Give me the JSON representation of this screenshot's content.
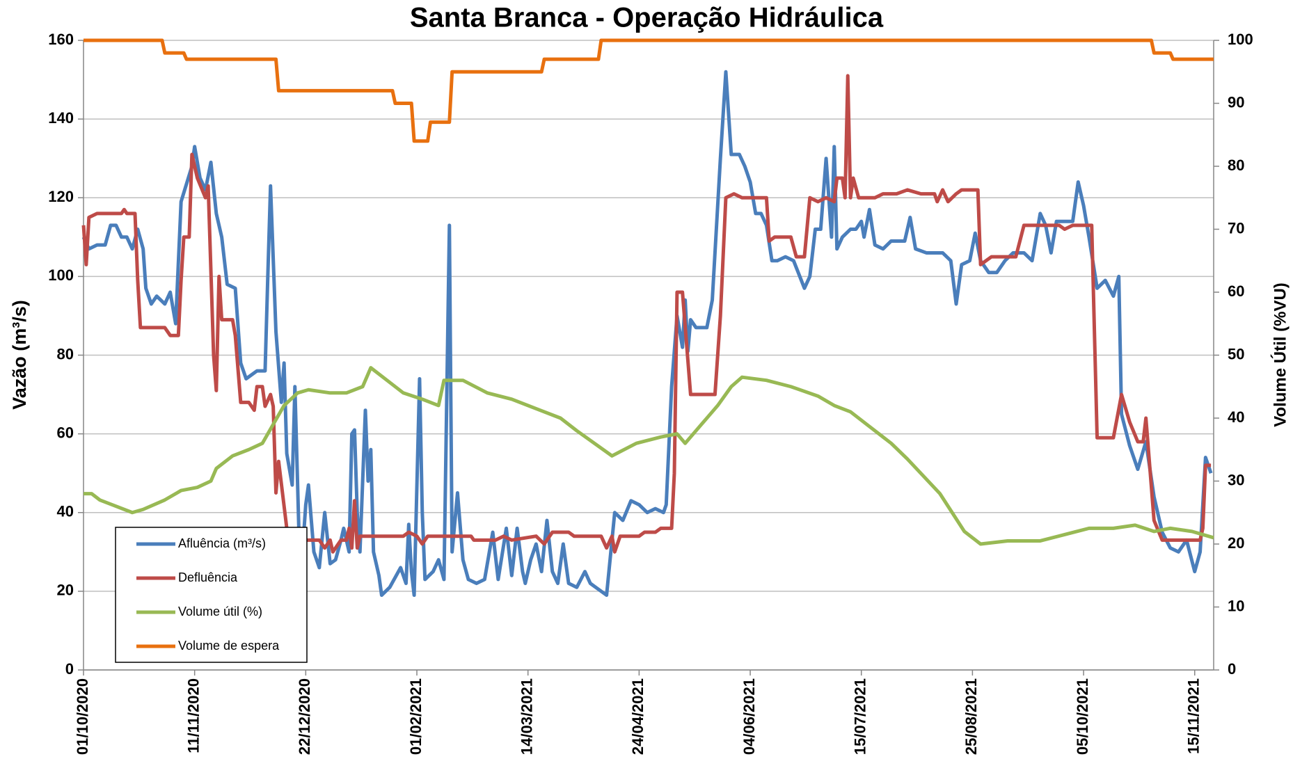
{
  "chart_data": {
    "type": "line",
    "title": "Santa Branca - Operação Hidráulica",
    "y_label": "Vazão (m³/s)",
    "y2_label": "Volume Útil (%VU)",
    "xlim": [
      "2020-10-01",
      "2021-11-22"
    ],
    "xticks": [
      {
        "value": "2020-10-01",
        "label": "01/10/2020"
      },
      {
        "value": "2020-11-11",
        "label": "11/11/2020"
      },
      {
        "value": "2020-12-22",
        "label": "22/12/2020"
      },
      {
        "value": "2021-02-01",
        "label": "01/02/2021"
      },
      {
        "value": "2021-03-14",
        "label": "14/03/2021"
      },
      {
        "value": "2021-04-24",
        "label": "24/04/2021"
      },
      {
        "value": "2021-06-04",
        "label": "04/06/2021"
      },
      {
        "value": "2021-07-15",
        "label": "15/07/2021"
      },
      {
        "value": "2021-08-25",
        "label": "25/08/2021"
      },
      {
        "value": "2021-10-05",
        "label": "05/10/2021"
      },
      {
        "value": "2021-11-15",
        "label": "15/11/2021"
      }
    ],
    "ylim": [
      0,
      160
    ],
    "yticks": [
      0,
      20,
      40,
      60,
      80,
      100,
      120,
      140,
      160
    ],
    "y2lim": [
      0,
      100
    ],
    "y2ticks": [
      0,
      10,
      20,
      30,
      40,
      50,
      60,
      70,
      80,
      90,
      100
    ],
    "grid": true,
    "legend": "lower-left",
    "series": [
      {
        "name": "Afluência (m³/s)",
        "color": "#4a7ebb",
        "x": [
          "2020-10-01",
          "2020-10-03",
          "2020-10-06",
          "2020-10-09",
          "2020-10-11",
          "2020-10-13",
          "2020-10-15",
          "2020-10-17",
          "2020-10-19",
          "2020-10-21",
          "2020-10-23",
          "2020-10-24",
          "2020-10-26",
          "2020-10-28",
          "2020-10-31",
          "2020-11-02",
          "2020-11-04",
          "2020-11-06",
          "2020-11-10",
          "2020-11-11",
          "2020-11-13",
          "2020-11-15",
          "2020-11-17",
          "2020-11-19",
          "2020-11-21",
          "2020-11-23",
          "2020-11-26",
          "2020-11-28",
          "2020-11-30",
          "2020-12-04",
          "2020-12-07",
          "2020-12-08",
          "2020-12-09",
          "2020-12-11",
          "2020-12-13",
          "2020-12-14",
          "2020-12-15",
          "2020-12-17",
          "2020-12-18",
          "2020-12-20",
          "2020-12-22",
          "2020-12-23",
          "2020-12-25",
          "2020-12-27",
          "2020-12-29",
          "2020-12-31",
          "2021-01-02",
          "2021-01-04",
          "2021-01-05",
          "2021-01-07",
          "2021-01-08",
          "2021-01-09",
          "2021-01-10",
          "2021-01-11",
          "2021-01-13",
          "2021-01-14",
          "2021-01-15",
          "2021-01-16",
          "2021-01-18",
          "2021-01-19",
          "2021-01-22",
          "2021-01-26",
          "2021-01-28",
          "2021-01-29",
          "2021-01-30",
          "2021-01-31",
          "2021-02-02",
          "2021-02-03",
          "2021-02-04",
          "2021-02-07",
          "2021-02-09",
          "2021-02-11",
          "2021-02-13",
          "2021-02-14",
          "2021-02-16",
          "2021-02-18",
          "2021-02-20",
          "2021-02-23",
          "2021-02-26",
          "2021-03-01",
          "2021-03-03",
          "2021-03-06",
          "2021-03-08",
          "2021-03-10",
          "2021-03-12",
          "2021-03-13",
          "2021-03-15",
          "2021-03-17",
          "2021-03-19",
          "2021-03-21",
          "2021-03-23",
          "2021-03-25",
          "2021-03-27",
          "2021-03-29",
          "2021-04-01",
          "2021-04-04",
          "2021-04-06",
          "2021-04-08",
          "2021-04-12",
          "2021-04-15",
          "2021-04-18",
          "2021-04-21",
          "2021-04-24",
          "2021-04-27",
          "2021-04-30",
          "2021-05-03",
          "2021-05-04",
          "2021-05-06",
          "2021-05-08",
          "2021-05-10",
          "2021-05-11",
          "2021-05-12",
          "2021-05-13",
          "2021-05-15",
          "2021-05-19",
          "2021-05-21",
          "2021-05-24",
          "2021-05-26",
          "2021-05-28",
          "2021-05-31",
          "2021-06-02",
          "2021-06-04",
          "2021-06-06",
          "2021-06-08",
          "2021-06-10",
          "2021-06-12",
          "2021-06-14",
          "2021-06-17",
          "2021-06-20",
          "2021-06-24",
          "2021-06-26",
          "2021-06-28",
          "2021-06-30",
          "2021-07-02",
          "2021-07-04",
          "2021-07-05",
          "2021-07-06",
          "2021-07-08",
          "2021-07-11",
          "2021-07-13",
          "2021-07-15",
          "2021-07-16",
          "2021-07-18",
          "2021-07-20",
          "2021-07-23",
          "2021-07-26",
          "2021-07-31",
          "2021-08-02",
          "2021-08-04",
          "2021-08-08",
          "2021-08-14",
          "2021-08-17",
          "2021-08-19",
          "2021-08-21",
          "2021-08-24",
          "2021-08-26",
          "2021-08-28",
          "2021-08-31",
          "2021-09-03",
          "2021-09-06",
          "2021-09-09",
          "2021-09-13",
          "2021-09-16",
          "2021-09-19",
          "2021-09-21",
          "2021-09-23",
          "2021-09-25",
          "2021-09-28",
          "2021-10-01",
          "2021-10-03",
          "2021-10-05",
          "2021-10-07",
          "2021-10-10",
          "2021-10-13",
          "2021-10-16",
          "2021-10-18",
          "2021-10-19",
          "2021-10-22",
          "2021-10-25",
          "2021-10-28",
          "2021-10-31",
          "2021-11-03",
          "2021-11-06",
          "2021-11-09",
          "2021-11-12",
          "2021-11-15",
          "2021-11-17",
          "2021-11-19",
          "2021-11-21"
        ],
        "values": [
          110,
          107,
          108,
          108,
          113,
          113,
          110,
          110,
          107,
          112,
          107,
          97,
          93,
          95,
          93,
          96,
          88,
          119,
          128,
          133,
          125,
          122,
          129,
          116,
          110,
          98,
          97,
          78,
          74,
          76,
          76,
          100,
          123,
          86,
          68,
          78,
          55,
          47,
          72,
          22,
          42,
          47,
          30,
          26,
          40,
          27,
          28,
          33,
          36,
          30,
          60,
          61,
          40,
          30,
          66,
          48,
          56,
          30,
          24,
          19,
          21,
          26,
          22,
          37,
          25,
          19,
          74,
          40,
          23,
          25,
          28,
          23,
          113,
          30,
          45,
          28,
          23,
          22,
          23,
          35,
          23,
          36,
          24,
          36,
          25,
          22,
          28,
          32,
          25,
          38,
          25,
          22,
          32,
          22,
          21,
          25,
          22,
          21,
          19,
          40,
          38,
          43,
          42,
          40,
          41,
          40,
          42,
          72,
          90,
          82,
          94,
          81,
          89,
          87,
          87,
          94,
          130,
          152,
          131,
          131,
          128,
          124,
          116,
          116,
          113,
          104,
          104,
          105,
          104,
          97,
          100,
          112,
          112,
          130,
          110,
          133,
          107,
          110,
          112,
          112,
          114,
          110,
          117,
          108,
          107,
          109,
          109,
          115,
          107,
          106,
          106,
          104,
          93,
          103,
          104,
          111,
          104,
          101,
          101,
          104,
          106,
          106,
          104,
          116,
          113,
          106,
          114,
          114,
          114,
          124,
          118,
          110,
          97,
          99,
          95,
          100,
          65,
          57,
          51,
          58,
          44,
          35,
          31,
          30,
          33,
          25,
          30,
          54,
          50
        ]
      },
      {
        "name": "Defluência",
        "color": "#be4b48",
        "x": [
          "2020-10-01",
          "2020-10-02",
          "2020-10-03",
          "2020-10-06",
          "2020-10-15",
          "2020-10-16",
          "2020-10-17",
          "2020-10-20",
          "2020-10-21",
          "2020-10-22",
          "2020-10-31",
          "2020-11-02",
          "2020-11-05",
          "2020-11-06",
          "2020-11-07",
          "2020-11-09",
          "2020-11-10",
          "2020-11-12",
          "2020-11-15",
          "2020-11-16",
          "2020-11-18",
          "2020-11-19",
          "2020-11-20",
          "2020-11-21",
          "2020-11-25",
          "2020-11-26",
          "2020-11-28",
          "2020-12-01",
          "2020-12-03",
          "2020-12-04",
          "2020-12-06",
          "2020-12-07",
          "2020-12-09",
          "2020-12-10",
          "2020-12-11",
          "2020-12-12",
          "2020-12-15",
          "2020-12-17",
          "2020-12-27",
          "2020-12-29",
          "2020-12-31",
          "2021-01-01",
          "2021-01-04",
          "2021-01-06",
          "2021-01-07",
          "2021-01-08",
          "2021-01-09",
          "2021-01-10",
          "2021-01-11",
          "2021-01-27",
          "2021-01-29",
          "2021-02-01",
          "2021-02-03",
          "2021-02-05",
          "2021-02-21",
          "2021-02-22",
          "2021-03-02",
          "2021-03-05",
          "2021-03-08",
          "2021-03-17",
          "2021-03-20",
          "2021-03-23",
          "2021-03-29",
          "2021-03-31",
          "2021-04-10",
          "2021-04-12",
          "2021-04-14",
          "2021-04-15",
          "2021-04-17",
          "2021-04-24",
          "2021-04-26",
          "2021-04-30",
          "2021-05-02",
          "2021-05-06",
          "2021-05-07",
          "2021-05-08",
          "2021-05-10",
          "2021-05-13",
          "2021-05-22",
          "2021-05-24",
          "2021-05-26",
          "2021-05-29",
          "2021-06-01",
          "2021-06-10",
          "2021-06-11",
          "2021-06-13",
          "2021-06-19",
          "2021-06-21",
          "2021-06-24",
          "2021-06-26",
          "2021-06-29",
          "2021-07-02",
          "2021-07-05",
          "2021-07-06",
          "2021-07-08",
          "2021-07-09",
          "2021-07-10",
          "2021-07-11",
          "2021-07-12",
          "2021-07-14",
          "2021-07-20",
          "2021-07-23",
          "2021-07-28",
          "2021-08-01",
          "2021-08-06",
          "2021-08-11",
          "2021-08-12",
          "2021-08-14",
          "2021-08-16",
          "2021-08-19",
          "2021-08-21",
          "2021-08-27",
          "2021-08-28",
          "2021-09-01",
          "2021-09-10",
          "2021-09-13",
          "2021-09-26",
          "2021-09-28",
          "2021-10-01",
          "2021-10-08",
          "2021-10-10",
          "2021-10-16",
          "2021-10-19",
          "2021-10-22",
          "2021-10-25",
          "2021-10-27",
          "2021-10-28",
          "2021-10-31",
          "2021-11-03",
          "2021-11-17",
          "2021-11-18",
          "2021-11-19",
          "2021-11-21"
        ],
        "values": [
          113,
          103,
          115,
          116,
          116,
          117,
          116,
          116,
          99,
          87,
          87,
          85,
          85,
          99,
          110,
          110,
          131,
          125,
          120,
          123,
          80,
          71,
          100,
          89,
          89,
          85,
          68,
          68,
          66,
          72,
          72,
          67,
          70,
          67,
          45,
          53,
          36,
          33,
          33,
          31,
          33,
          30,
          33,
          33,
          36,
          31,
          43,
          31,
          34,
          34,
          35,
          34,
          32,
          34,
          34,
          33,
          33,
          34,
          33,
          34,
          32,
          35,
          35,
          34,
          34,
          31,
          34,
          30,
          34,
          34,
          35,
          35,
          36,
          36,
          50,
          96,
          96,
          70,
          70,
          90,
          120,
          121,
          120,
          120,
          109,
          110,
          110,
          105,
          105,
          120,
          119,
          120,
          119,
          125,
          125,
          120,
          151,
          120,
          125,
          120,
          120,
          121,
          121,
          122,
          121,
          121,
          119,
          122,
          119,
          121,
          122,
          122,
          103,
          105,
          105,
          113,
          113,
          112,
          113,
          113,
          59,
          59,
          70,
          63,
          58,
          58,
          64,
          38,
          33,
          33,
          36,
          52,
          52
        ]
      },
      {
        "name": "Volume útil (%)",
        "color": "#98b954",
        "axis": "y2",
        "x": [
          "2020-10-01",
          "2020-10-04",
          "2020-10-07",
          "2020-10-13",
          "2020-10-19",
          "2020-10-23",
          "2020-10-31",
          "2020-11-06",
          "2020-11-12",
          "2020-11-17",
          "2020-11-19",
          "2020-11-25",
          "2020-12-01",
          "2020-12-06",
          "2020-12-10",
          "2020-12-14",
          "2020-12-19",
          "2020-12-23",
          "2020-12-31",
          "2021-01-06",
          "2021-01-12",
          "2021-01-15",
          "2021-01-21",
          "2021-01-27",
          "2021-02-03",
          "2021-02-09",
          "2021-02-11",
          "2021-02-18",
          "2021-02-27",
          "2021-03-08",
          "2021-03-17",
          "2021-03-26",
          "2021-04-01",
          "2021-04-14",
          "2021-04-23",
          "2021-05-02",
          "2021-05-08",
          "2021-05-11",
          "2021-05-17",
          "2021-05-23",
          "2021-05-28",
          "2021-06-01",
          "2021-06-10",
          "2021-06-19",
          "2021-06-29",
          "2021-07-05",
          "2021-07-11",
          "2021-07-17",
          "2021-07-26",
          "2021-08-01",
          "2021-08-13",
          "2021-08-22",
          "2021-08-28",
          "2021-09-07",
          "2021-09-19",
          "2021-09-28",
          "2021-10-07",
          "2021-10-16",
          "2021-10-24",
          "2021-10-31",
          "2021-11-06",
          "2021-11-14",
          "2021-11-22"
        ],
        "values": [
          28,
          28,
          27,
          26,
          25,
          25.5,
          27,
          28.5,
          29,
          30,
          32,
          34,
          35,
          36,
          39,
          42,
          44,
          44.5,
          44,
          44,
          45,
          48,
          46,
          44,
          43,
          42,
          46,
          46,
          44,
          43,
          41.5,
          40,
          38,
          34,
          36,
          37,
          37.5,
          36,
          39,
          42,
          45,
          46.5,
          46,
          45,
          43.5,
          42,
          41,
          39,
          36,
          33.5,
          28,
          22,
          20,
          20.5,
          20.5,
          21.5,
          22.5,
          22.5,
          23,
          22,
          22.5,
          22,
          21
        ]
      },
      {
        "name": "Volume de espera",
        "color": "#e8700f",
        "axis": "y2",
        "x": [
          "2020-10-01",
          "2020-10-30",
          "2020-10-31",
          "2020-11-07",
          "2020-11-08",
          "2020-12-11",
          "2020-12-12",
          "2021-01-23",
          "2021-01-24",
          "2021-01-30",
          "2021-01-31",
          "2021-02-05",
          "2021-02-06",
          "2021-02-13",
          "2021-02-14",
          "2021-03-19",
          "2021-03-20",
          "2021-04-09",
          "2021-04-10",
          "2021-10-30",
          "2021-10-31",
          "2021-11-06",
          "2021-11-07",
          "2021-11-22"
        ],
        "values": [
          100,
          100,
          98,
          98,
          97,
          97,
          92,
          92,
          90,
          90,
          84,
          84,
          87,
          87,
          95,
          95,
          97,
          97,
          100,
          100,
          98,
          98,
          97,
          97
        ]
      }
    ]
  }
}
